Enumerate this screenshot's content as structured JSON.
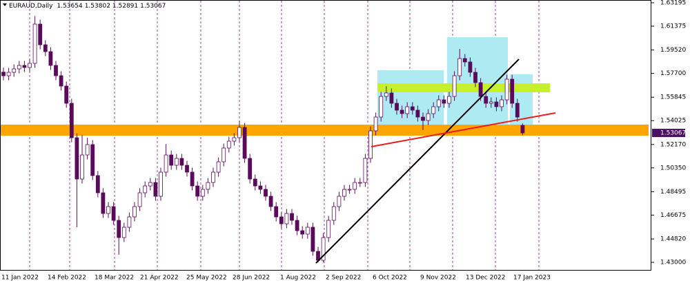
{
  "chart_data": {
    "type": "candlestick",
    "symbol": "EURAUD,Daily",
    "up_color": "#ffffff",
    "down_color": "#5a0a5a",
    "wick_color": "#5a0a5a",
    "price_label_color": "#4b0f63",
    "ylim": [
      1.42357,
      1.63409
    ],
    "yticks": [
      1.63195,
      1.61375,
      {
        "value": 1.5952,
        "label": "1.59520"
      },
      {
        "value": 1.577,
        "label": "1.57700"
      },
      1.55845,
      1.54025,
      {
        "value": 1.5217,
        "label": "1.52170"
      },
      {
        "value": 1.5035,
        "label": "1.50350"
      },
      1.48495,
      1.46675,
      {
        "value": 1.4482,
        "label": "1.44820"
      },
      {
        "value": 1.43,
        "label": "1.43000"
      }
    ],
    "x_labels": [
      "11 Jan 2022",
      "14 Feb 2022",
      "18 Mar 2022",
      "21 Apr 2022",
      "25 May 2022",
      "28 Jun 2022",
      "1 Aug 2022",
      "2 Sep 2022",
      "6 Oct 2022",
      "9 Nov 2022",
      "13 Dec 2022",
      "17 Jan 2023"
    ],
    "open": [
      1.578,
      1.57517,
      1.57784,
      1.58052,
      1.5832,
      1.58159,
      1.58481,
      1.61534,
      1.59927,
      1.59392,
      1.5832,
      1.57517,
      1.56713,
      1.55374,
      1.52695,
      1.49481,
      1.51356,
      1.5216,
      1.49749,
      1.4841,
      1.46803,
      1.47338,
      1.46267,
      1.44928,
      1.45731,
      1.46535,
      1.47338,
      1.4841,
      1.48945,
      1.49213,
      1.48142,
      1.50017,
      1.51356,
      1.50552,
      1.51088,
      1.50552,
      1.50017,
      1.48945,
      1.48142,
      1.48678,
      1.49213,
      1.50017,
      1.5082,
      1.51892,
      1.52428,
      1.52695,
      1.53499,
      1.51088,
      1.49481,
      1.48945,
      1.48678,
      1.48142,
      1.47338,
      1.46535,
      1.45999,
      1.46803,
      1.46267,
      1.45463,
      1.45195,
      1.45731,
      1.43856,
      1.4316,
      1.44928,
      1.46267,
      1.47338,
      1.48142,
      1.48678,
      1.48678,
      1.49213,
      1.49213,
      1.51088,
      1.53231,
      1.54302,
      1.55909,
      1.56177,
      1.55374,
      1.54838,
      1.5457,
      1.55106,
      1.54838,
      1.54302,
      1.54035,
      1.5457,
      1.55106,
      1.55642,
      1.55374,
      1.55909,
      1.57517,
      1.58856,
      1.58588,
      1.57784,
      1.56981,
      1.55909,
      1.55374,
      1.55481,
      1.55106,
      1.55642,
      1.57249,
      1.55374,
      1.53654
    ],
    "high": [
      1.5815,
      1.58134,
      1.58402,
      1.5867,
      1.5867,
      1.58831,
      1.6215,
      1.61884,
      1.60277,
      1.59742,
      1.5867,
      1.57867,
      1.57063,
      1.55724,
      1.53045,
      1.529,
      1.527,
      1.5251,
      1.50099,
      1.4876,
      1.47688,
      1.47688,
      1.46617,
      1.46081,
      1.46885,
      1.47688,
      1.4876,
      1.49295,
      1.49563,
      1.49563,
      1.50367,
      1.522,
      1.51706,
      1.51438,
      1.51438,
      1.50902,
      1.50367,
      1.49295,
      1.49028,
      1.49563,
      1.50367,
      1.5117,
      1.52242,
      1.52778,
      1.53045,
      1.54,
      1.53849,
      1.51438,
      1.49831,
      1.49295,
      1.49028,
      1.48492,
      1.47688,
      1.46885,
      1.47153,
      1.47153,
      1.46617,
      1.45813,
      1.46081,
      1.46081,
      1.44206,
      1.45278,
      1.46617,
      1.47688,
      1.48492,
      1.49028,
      1.49028,
      1.49563,
      1.49563,
      1.51438,
      1.53581,
      1.54652,
      1.56259,
      1.567,
      1.56527,
      1.55724,
      1.55188,
      1.55456,
      1.55456,
      1.55188,
      1.54652,
      1.5492,
      1.55456,
      1.55992,
      1.55992,
      1.56259,
      1.57867,
      1.596,
      1.59206,
      1.58938,
      1.58134,
      1.57331,
      1.56259,
      1.55831,
      1.55831,
      1.55992,
      1.57599,
      1.57599,
      1.55724,
      1.53802
    ],
    "low": [
      1.57167,
      1.57167,
      1.57434,
      1.57702,
      1.57809,
      1.57809,
      1.58131,
      1.59577,
      1.59042,
      1.5797,
      1.57167,
      1.56363,
      1.55024,
      1.52345,
      1.45731,
      1.49131,
      1.51006,
      1.49399,
      1.4806,
      1.46453,
      1.46453,
      1.45917,
      1.436,
      1.44578,
      1.45381,
      1.46185,
      1.46988,
      1.4806,
      1.48595,
      1.47792,
      1.47792,
      1.49667,
      1.50202,
      1.50202,
      1.50202,
      1.49667,
      1.48595,
      1.47792,
      1.47792,
      1.48328,
      1.48863,
      1.49667,
      1.5047,
      1.51542,
      1.52078,
      1.52345,
      1.50738,
      1.49131,
      1.48595,
      1.48328,
      1.47792,
      1.46988,
      1.46185,
      1.45649,
      1.45649,
      1.45917,
      1.45113,
      1.44845,
      1.44845,
      1.43506,
      1.43,
      1.43,
      1.44578,
      1.45917,
      1.46988,
      1.47792,
      1.48328,
      1.48328,
      1.48863,
      1.48863,
      1.50738,
      1.52881,
      1.53952,
      1.55559,
      1.55024,
      1.54488,
      1.5422,
      1.5422,
      1.54488,
      1.53952,
      1.533,
      1.53685,
      1.5422,
      1.54756,
      1.55024,
      1.55024,
      1.55559,
      1.57167,
      1.58238,
      1.57434,
      1.56631,
      1.55559,
      1.55024,
      1.55024,
      1.54756,
      1.54756,
      1.55292,
      1.55024,
      1.53952,
      1.52891
    ],
    "close": [
      1.57517,
      1.57784,
      1.58052,
      1.5832,
      1.58159,
      1.58481,
      1.61534,
      1.59927,
      1.59392,
      1.5832,
      1.57517,
      1.56713,
      1.55374,
      1.52695,
      1.49481,
      1.51356,
      1.5216,
      1.49749,
      1.4841,
      1.46803,
      1.47338,
      1.46267,
      1.44928,
      1.45731,
      1.46535,
      1.47338,
      1.4841,
      1.48945,
      1.49213,
      1.48142,
      1.50017,
      1.51356,
      1.50552,
      1.51088,
      1.50552,
      1.50017,
      1.48945,
      1.48142,
      1.48678,
      1.49213,
      1.50017,
      1.5082,
      1.51892,
      1.52428,
      1.52695,
      1.53499,
      1.51088,
      1.49481,
      1.48945,
      1.48678,
      1.48142,
      1.47338,
      1.46535,
      1.45999,
      1.46803,
      1.46267,
      1.45463,
      1.45195,
      1.45731,
      1.43856,
      1.4316,
      1.44928,
      1.46267,
      1.47338,
      1.48142,
      1.48678,
      1.48678,
      1.49213,
      1.49213,
      1.51088,
      1.53231,
      1.54302,
      1.55909,
      1.56177,
      1.55374,
      1.54838,
      1.5457,
      1.55106,
      1.54838,
      1.54302,
      1.54035,
      1.5457,
      1.55106,
      1.55642,
      1.55374,
      1.55909,
      1.57517,
      1.58856,
      1.58588,
      1.57784,
      1.56981,
      1.55909,
      1.55374,
      1.55481,
      1.55106,
      1.55642,
      1.57249,
      1.55374,
      1.54302,
      1.53067
    ]
  }
}
